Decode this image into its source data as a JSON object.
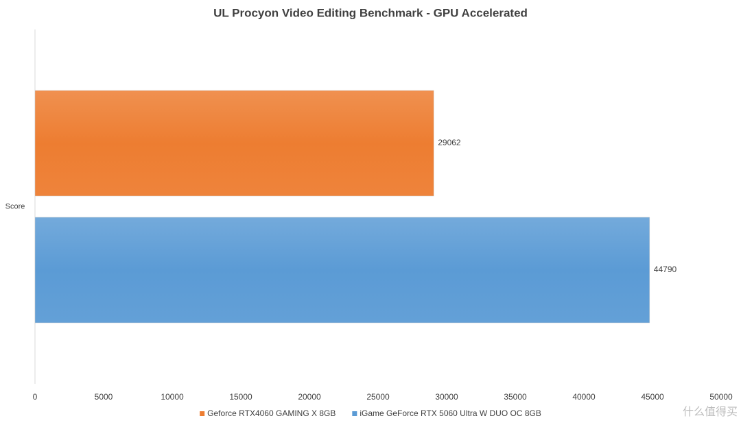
{
  "chart_data": {
    "type": "hbar",
    "title": "UL Procyon Video Editing Benchmark - GPU Accelerated",
    "categories": [
      "Score"
    ],
    "series": [
      {
        "name": "Geforce RTX4060 GAMING X 8GB",
        "color": "#ed7d31",
        "values": [
          29062
        ]
      },
      {
        "name": "iGame GeForce RTX 5060 Ultra W DUO OC 8GB",
        "color": "#5b9bd5",
        "values": [
          44790
        ]
      }
    ],
    "xlim": [
      0,
      50000
    ],
    "xticks": [
      0,
      5000,
      10000,
      15000,
      20000,
      25000,
      30000,
      35000,
      40000,
      45000,
      50000
    ],
    "grid": false,
    "legend": "bottom",
    "watermark": "什么值得买"
  }
}
